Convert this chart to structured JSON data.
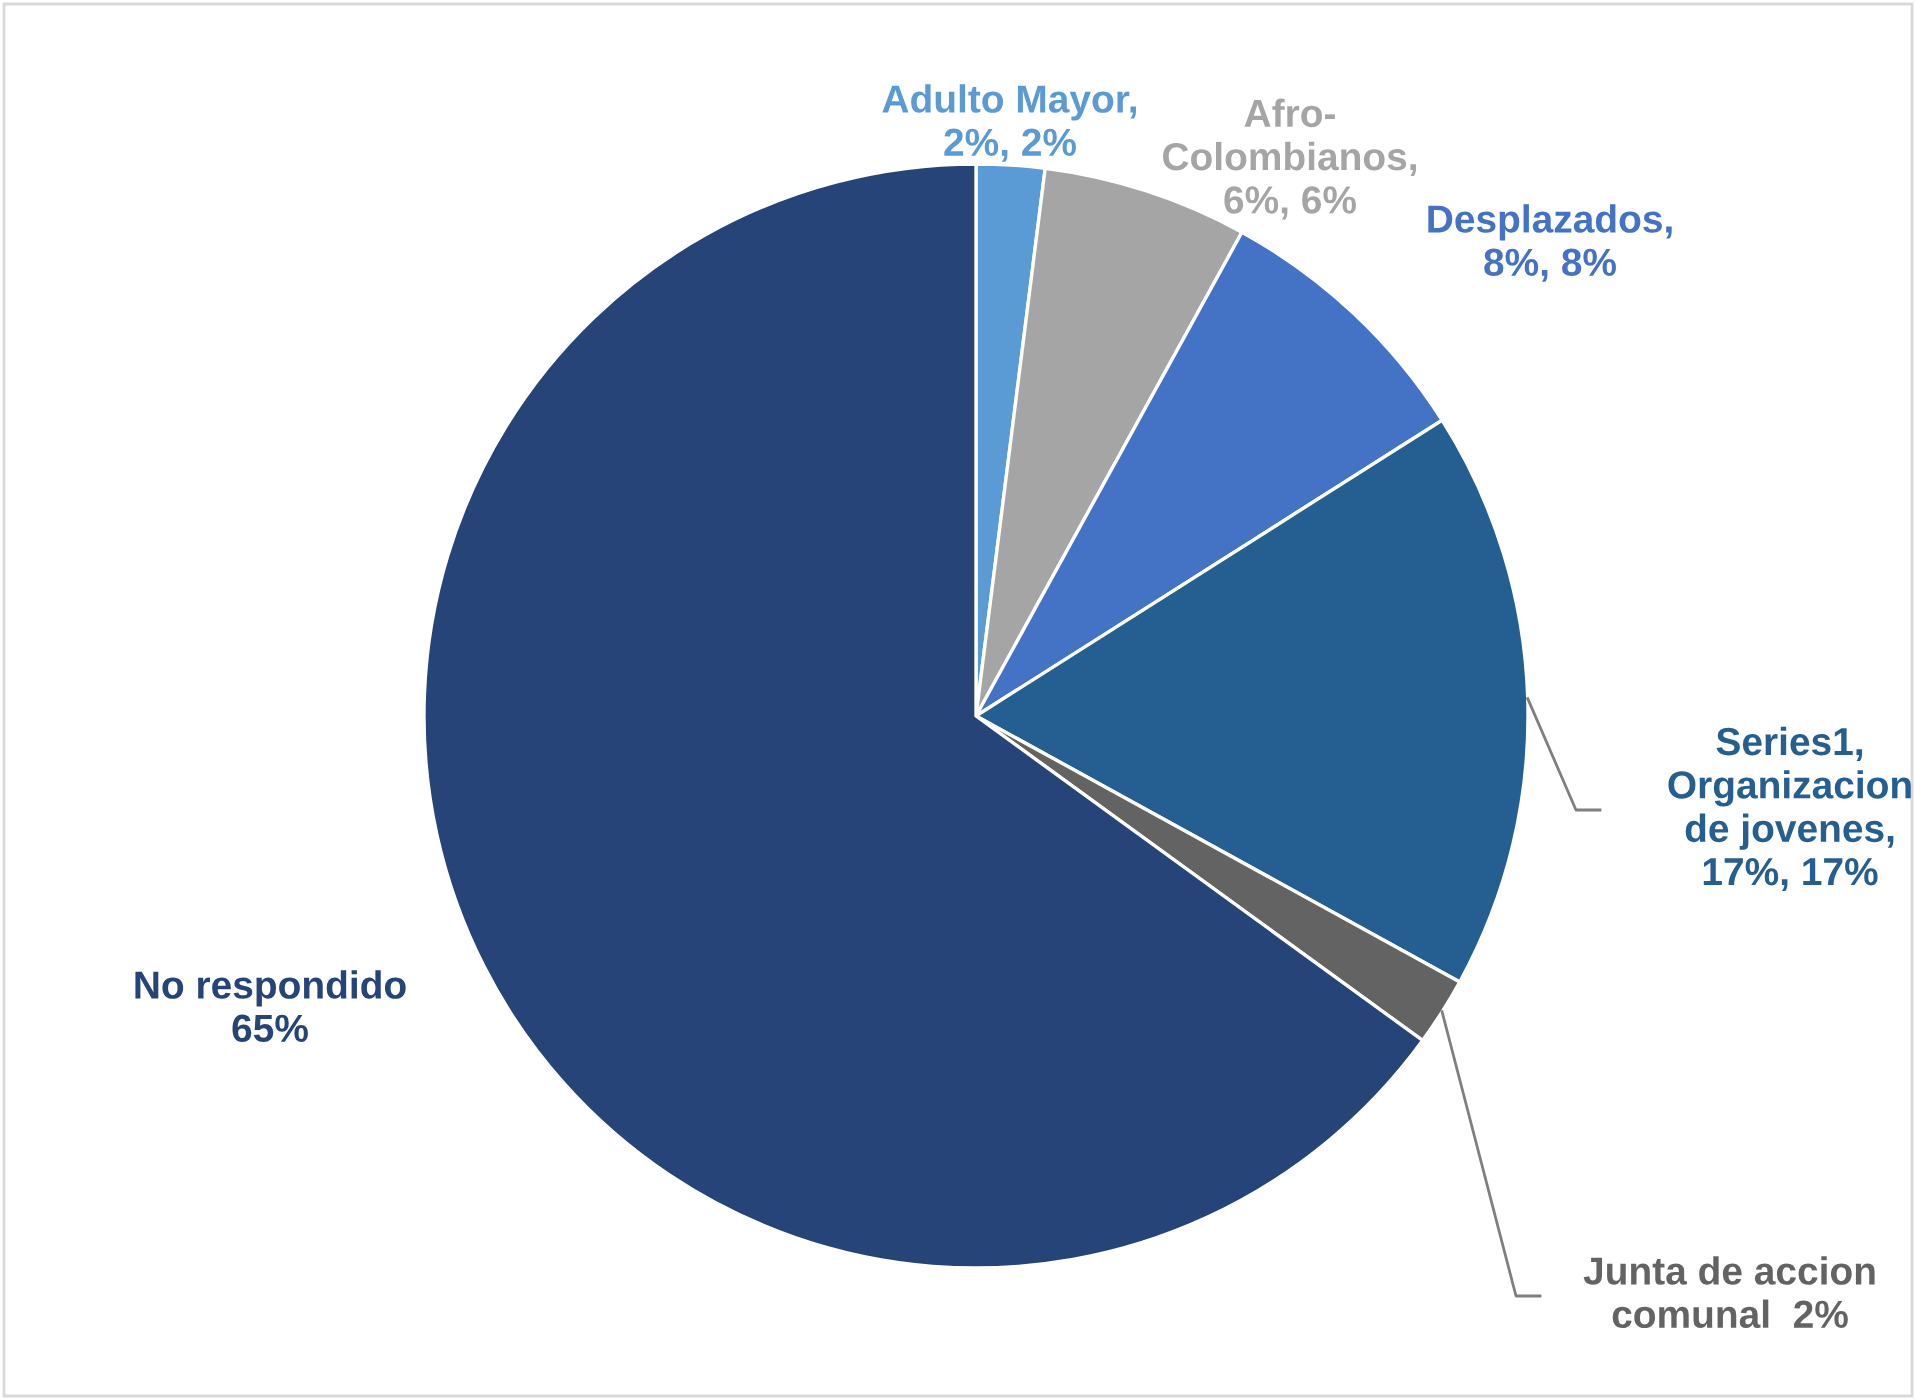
{
  "chart_data": {
    "type": "pie",
    "categories": [
      "Adulto Mayor,\n2%, 2%",
      "Afro-\nColombianos,\n6%, 6%",
      "Desplazados,\n8%, 8%",
      "Series1,\nOrganizacion\nde jovenes,\n17%, 17%",
      "Junta de accion\ncomunal  2%",
      "No respondido\n65%"
    ],
    "values": [
      2,
      6,
      8,
      17,
      2,
      65
    ],
    "colors": [
      "#5b9bd5",
      "#a5a5a5",
      "#4472c4",
      "#255e91",
      "#636363",
      "#264478"
    ]
  }
}
